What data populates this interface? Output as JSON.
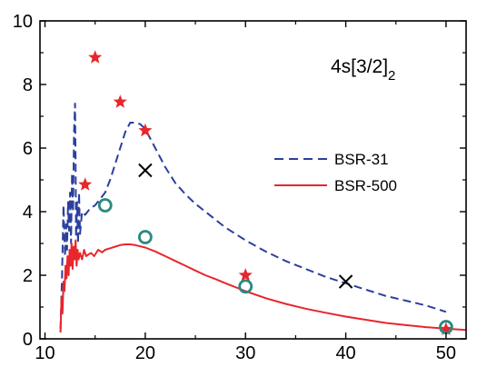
{
  "chart_data": {
    "type": "line",
    "title": "",
    "xlabel": "",
    "ylabel": "",
    "xlim": [
      9.5,
      52
    ],
    "ylim": [
      0,
      10
    ],
    "x_ticks": [
      10,
      20,
      30,
      40,
      50
    ],
    "y_ticks": [
      0,
      2,
      4,
      6,
      8,
      10
    ],
    "grid": false,
    "legend_position": "right",
    "annotation": {
      "main": "4s[3/2]",
      "subscript": "2"
    },
    "series": [
      {
        "name": "BSR-31",
        "style": "dashed",
        "color": "#2b3f9e",
        "x": [
          11.55,
          11.7,
          11.85,
          12.0,
          12.1,
          12.2,
          12.3,
          12.4,
          12.5,
          12.6,
          12.7,
          12.8,
          12.9,
          13.0,
          13.05,
          13.1,
          13.2,
          13.3,
          13.4,
          13.5,
          13.7,
          14.0,
          14.5,
          15.0,
          15.5,
          16.0,
          16.5,
          17.0,
          17.5,
          18.0,
          18.5,
          19.0,
          19.5,
          20.0,
          20.5,
          21.0,
          22.0,
          23.0,
          24.0,
          25.0,
          26.0,
          27.0,
          28.0,
          30.0,
          32.0,
          34.0,
          36.0,
          38.0,
          40.0,
          42.0,
          44.0,
          46.0,
          48.0,
          50.0
        ],
        "y": [
          0.3,
          2.0,
          4.2,
          2.6,
          3.6,
          2.8,
          4.3,
          3.4,
          4.6,
          3.0,
          5.2,
          4.0,
          6.5,
          7.4,
          5.5,
          3.2,
          4.3,
          3.0,
          4.6,
          3.3,
          4.0,
          3.9,
          4.1,
          4.2,
          4.4,
          4.6,
          5.0,
          5.5,
          6.0,
          6.5,
          6.8,
          6.8,
          6.75,
          6.6,
          6.3,
          6.0,
          5.4,
          4.9,
          4.55,
          4.25,
          4.0,
          3.75,
          3.5,
          3.1,
          2.75,
          2.45,
          2.2,
          1.95,
          1.75,
          1.55,
          1.35,
          1.2,
          1.05,
          0.85
        ]
      },
      {
        "name": "BSR-500",
        "style": "solid",
        "color": "#e8262b",
        "x": [
          11.55,
          11.65,
          11.75,
          11.85,
          11.95,
          12.05,
          12.15,
          12.25,
          12.35,
          12.45,
          12.55,
          12.65,
          12.75,
          12.85,
          12.95,
          13.05,
          13.15,
          13.25,
          13.35,
          13.5,
          13.7,
          13.9,
          14.1,
          14.3,
          14.6,
          14.9,
          15.3,
          15.7,
          16.0,
          16.5,
          17.0,
          17.5,
          18.0,
          18.5,
          19.0,
          20.0,
          21.0,
          22.0,
          23.0,
          24.0,
          25.0,
          26.0,
          27.0,
          28.0,
          30.0,
          32.0,
          34.0,
          36.0,
          38.0,
          40.0,
          42.0,
          44.0,
          46.0,
          48.0,
          50.0,
          52.0
        ],
        "y": [
          0.2,
          1.3,
          0.8,
          1.8,
          1.5,
          2.3,
          1.9,
          2.6,
          2.0,
          2.8,
          2.3,
          3.0,
          2.2,
          2.9,
          2.5,
          3.1,
          2.3,
          2.8,
          2.5,
          2.7,
          2.5,
          2.8,
          2.6,
          2.65,
          2.7,
          2.6,
          2.8,
          2.72,
          2.8,
          2.85,
          2.9,
          2.95,
          2.97,
          2.97,
          2.95,
          2.87,
          2.75,
          2.6,
          2.45,
          2.3,
          2.15,
          2.0,
          1.88,
          1.75,
          1.5,
          1.28,
          1.1,
          0.95,
          0.82,
          0.7,
          0.6,
          0.5,
          0.43,
          0.37,
          0.32,
          0.28
        ]
      }
    ],
    "markers": [
      {
        "symbol": "star",
        "color": "#e8262b",
        "points": [
          [
            14.0,
            4.85
          ],
          [
            15.0,
            8.85
          ],
          [
            17.5,
            7.45
          ],
          [
            20.0,
            6.55
          ],
          [
            30.0,
            2.0
          ],
          [
            50.0,
            0.3
          ]
        ]
      },
      {
        "symbol": "circle",
        "color": "#2a8a80",
        "points": [
          [
            16.0,
            4.2
          ],
          [
            20.0,
            3.2
          ],
          [
            30.0,
            1.65
          ],
          [
            50.0,
            0.37
          ]
        ]
      },
      {
        "symbol": "cross",
        "color": "#000000",
        "points": [
          [
            20.0,
            5.3
          ],
          [
            40.0,
            1.8
          ]
        ]
      }
    ]
  }
}
